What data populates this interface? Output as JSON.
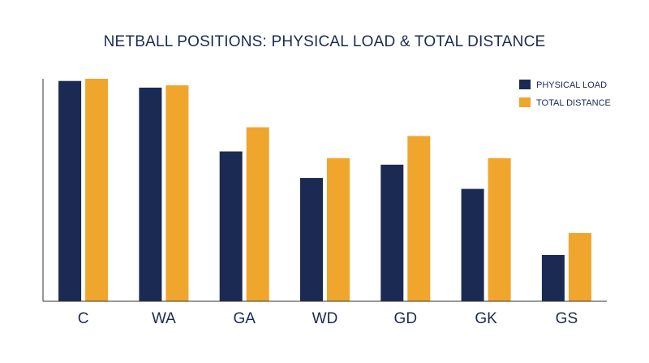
{
  "chart_data": {
    "type": "bar",
    "title": "NETBALL POSITIONS: PHYSICAL LOAD & TOTAL DISTANCE",
    "xlabel": "",
    "ylabel": "",
    "categories": [
      "C",
      "WA",
      "GA",
      "WD",
      "GD",
      "GK",
      "GS"
    ],
    "series": [
      {
        "name": "PHYSICAL LOAD",
        "color": "#1b2a52",
        "values": [
          100,
          97,
          68,
          56,
          62,
          51,
          21
        ]
      },
      {
        "name": "TOTAL DISTANCE",
        "color": "#f0a52c",
        "values": [
          101,
          98,
          79,
          65,
          75,
          65,
          31
        ]
      }
    ],
    "ylim": [
      0,
      101
    ],
    "grid": false,
    "y_ticks_visible": false,
    "legend_position": "top-right"
  }
}
